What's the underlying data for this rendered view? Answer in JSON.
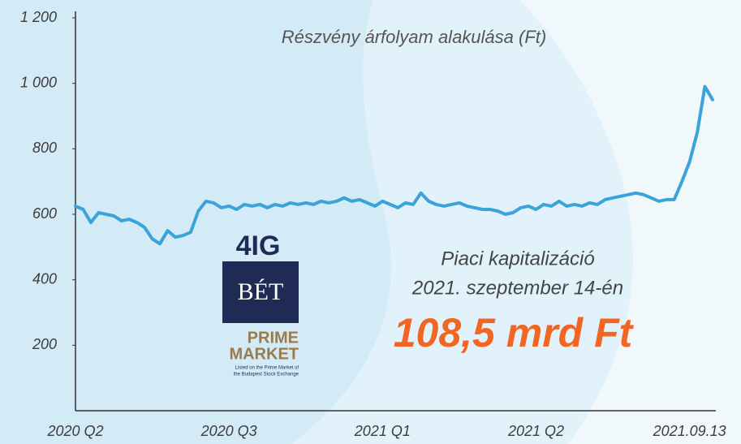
{
  "chart_data": {
    "type": "line",
    "title": "Részvény árfolyam alakulása (Ft)",
    "categories": [
      "2020 Q2",
      null,
      null,
      null,
      null,
      null,
      null,
      null,
      null,
      null,
      null,
      null,
      null,
      null,
      null,
      null,
      null,
      null,
      null,
      null,
      "2020 Q3",
      null,
      null,
      null,
      null,
      null,
      null,
      null,
      null,
      null,
      null,
      null,
      null,
      null,
      null,
      null,
      null,
      null,
      null,
      null,
      "2021 Q1",
      null,
      null,
      null,
      null,
      null,
      null,
      null,
      null,
      null,
      null,
      null,
      null,
      null,
      null,
      null,
      null,
      null,
      null,
      null,
      "2021 Q2",
      null,
      null,
      null,
      null,
      null,
      null,
      null,
      null,
      null,
      null,
      null,
      null,
      null,
      null,
      null,
      null,
      null,
      null,
      null,
      "2021.09.13",
      null,
      null,
      null
    ],
    "series": [
      {
        "color": "#3aa3d9",
        "values": [
          625,
          615,
          575,
          605,
          600,
          595,
          580,
          585,
          575,
          560,
          525,
          510,
          550,
          530,
          535,
          545,
          610,
          640,
          635,
          620,
          625,
          615,
          630,
          625,
          630,
          620,
          630,
          625,
          635,
          630,
          635,
          630,
          640,
          635,
          640,
          650,
          640,
          645,
          635,
          625,
          640,
          630,
          620,
          635,
          630,
          665,
          640,
          630,
          625,
          630,
          635,
          625,
          620,
          615,
          615,
          610,
          600,
          605,
          620,
          625,
          615,
          630,
          625,
          640,
          625,
          630,
          625,
          635,
          630,
          645,
          650,
          655,
          660,
          665,
          660,
          650,
          640,
          645,
          645,
          700,
          760,
          850,
          990,
          950
        ]
      }
    ],
    "ylim": [
      0,
      1200
    ],
    "yticks": [
      {
        "value": 200,
        "label": "200"
      },
      {
        "value": 400,
        "label": "400"
      },
      {
        "value": 600,
        "label": "600"
      },
      {
        "value": 800,
        "label": "800"
      },
      {
        "value": 1000,
        "label": "1 000"
      },
      {
        "value": 1200,
        "label": "1 200"
      }
    ],
    "annotations": [
      "Piaci kapitalizáció",
      "2021. szeptember 14-én",
      "108,5 mrd Ft"
    ]
  },
  "logo": {
    "brand": "4IG",
    "exchange": "BÉT",
    "line1": "PRIME",
    "line2": "MARKET",
    "note1": "Listed on the Prime Market of",
    "note2": "the Budapest Stock Exchange"
  }
}
